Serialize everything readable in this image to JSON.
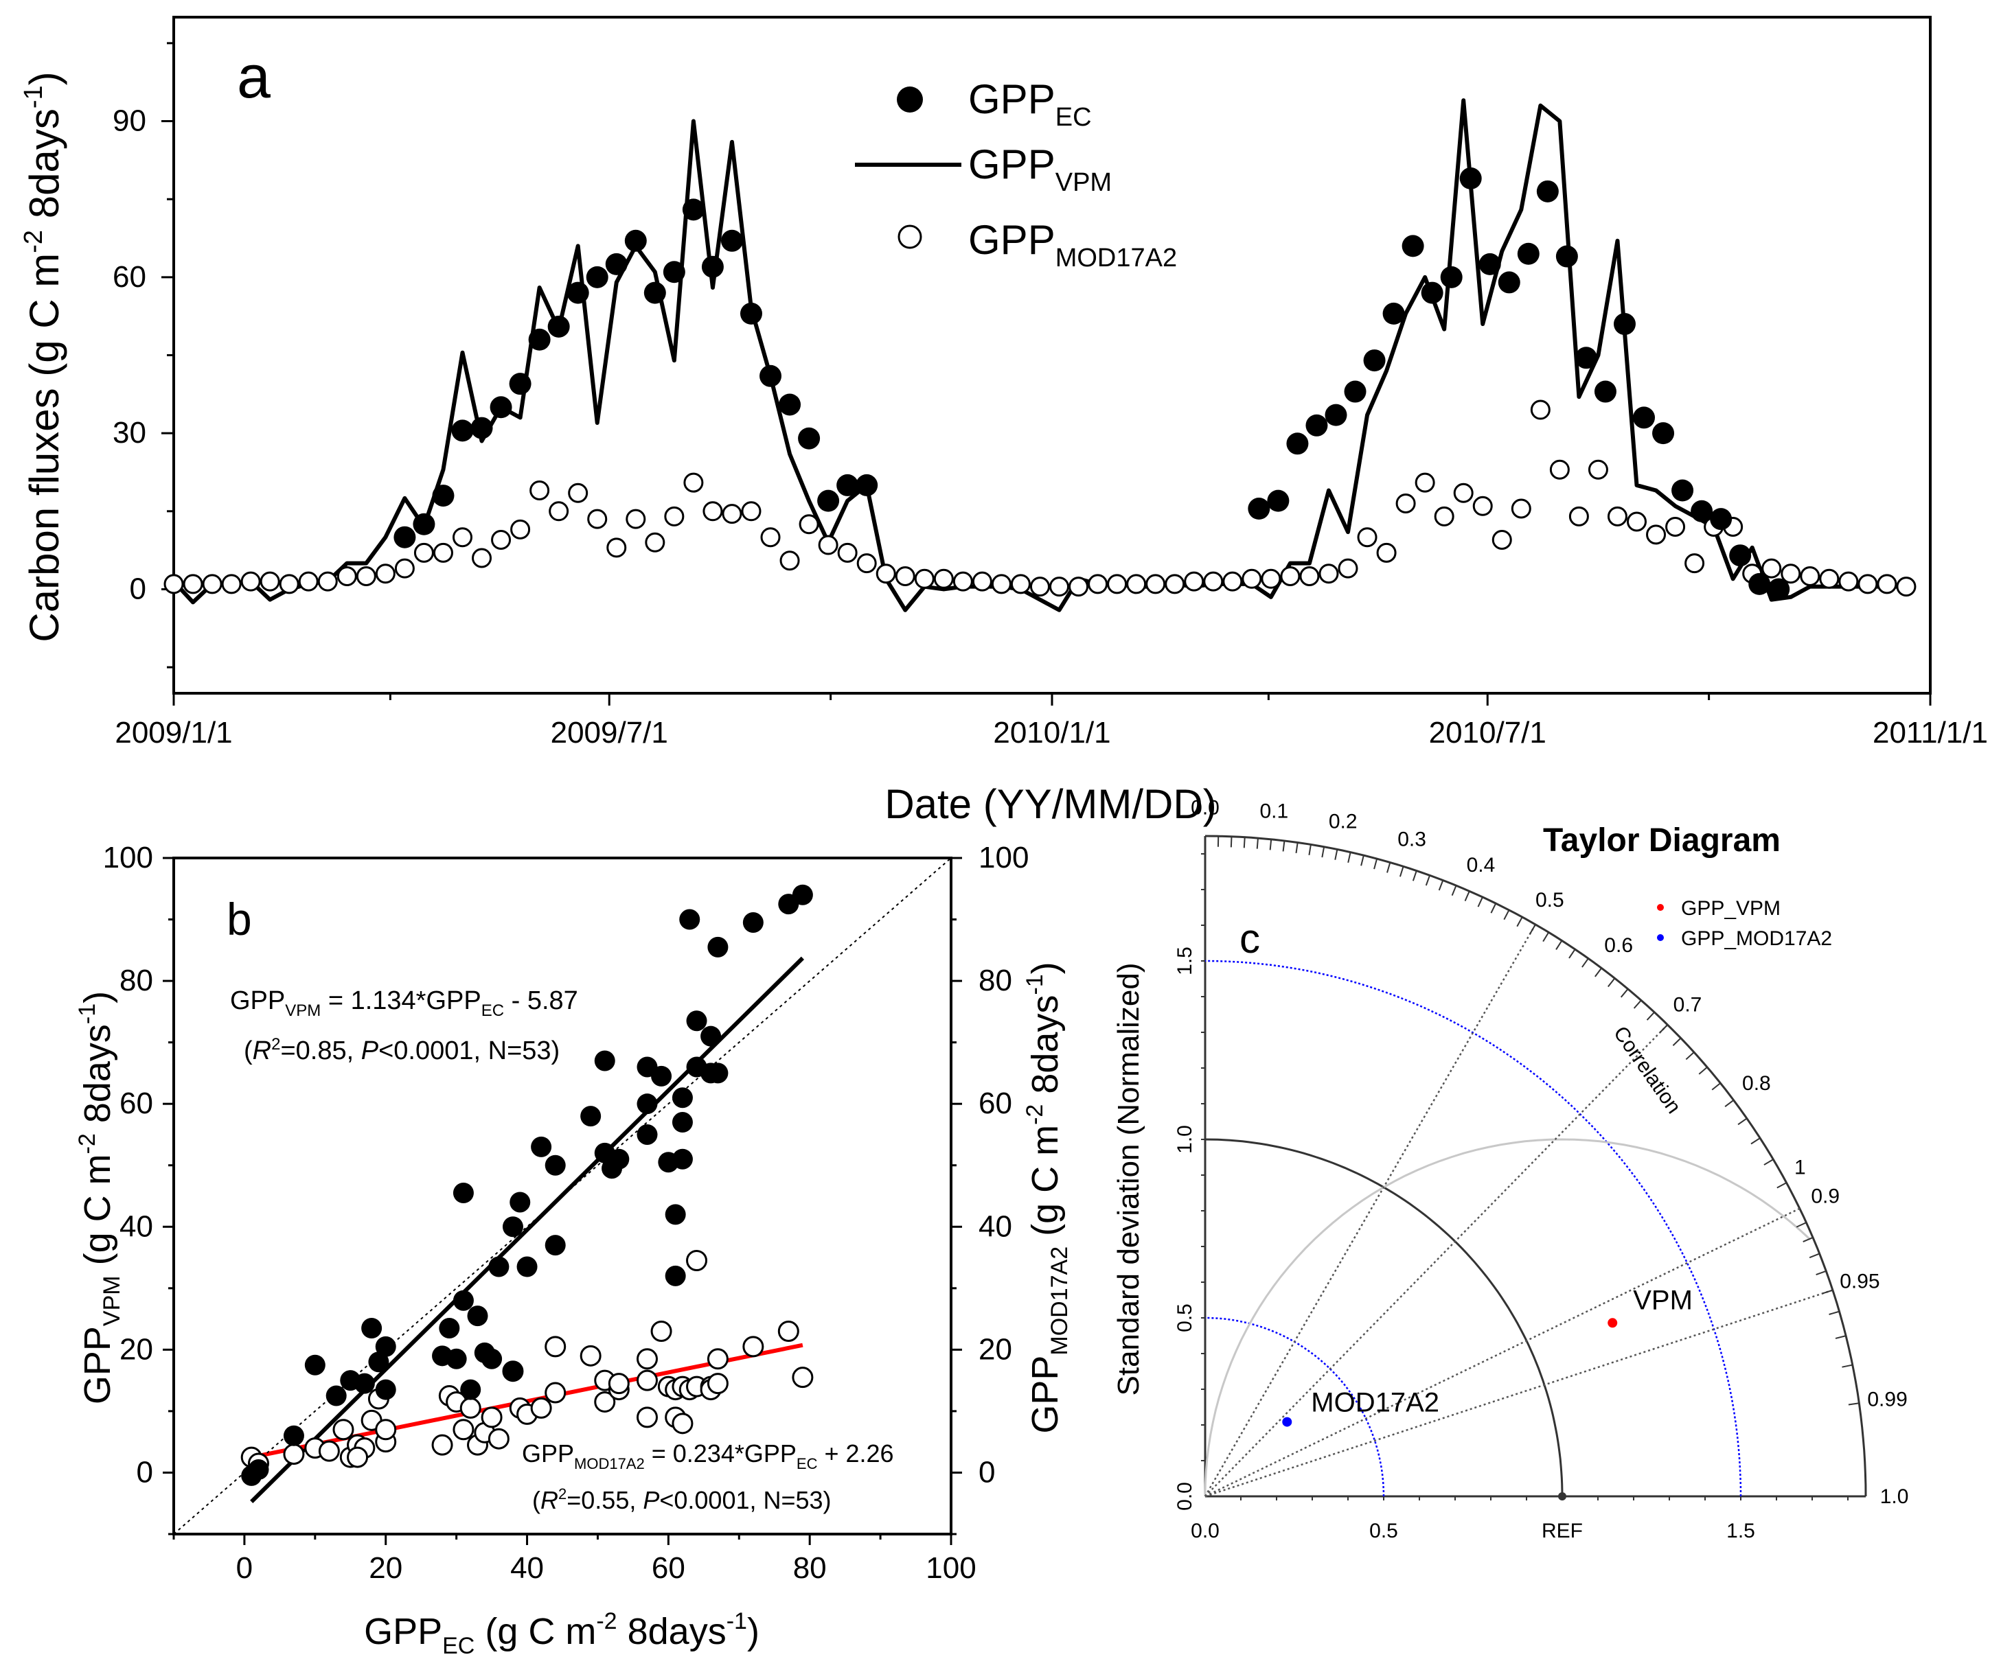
{
  "chart_data": [
    {
      "type": "line",
      "panel": "a",
      "xlabel": "Date (YY/MM/DD)",
      "ylabel": "Carbon fluxes (g C m-2 8days-1)",
      "ylabel_parts": {
        "base": "Carbon fluxes (g C m",
        "exp1": "-2",
        "mid": " 8days",
        "exp2": "-1",
        "end": ")"
      },
      "xlim": [
        0,
        730
      ],
      "ylim": [
        -20,
        110
      ],
      "yticks": [
        0,
        30,
        60,
        90
      ],
      "xticks": [
        {
          "day": 0,
          "label": "2009/1/1"
        },
        {
          "day": 181,
          "label": "2009/7/1"
        },
        {
          "day": 365,
          "label": "2010/1/1"
        },
        {
          "day": 546,
          "label": "2010/7/1"
        },
        {
          "day": 730,
          "label": "2011/1/1"
        }
      ],
      "legend": [
        {
          "base": "GPP",
          "sub": "EC",
          "marker": "filled-circle"
        },
        {
          "base": "GPP",
          "sub": "VPM",
          "marker": "line"
        },
        {
          "base": "GPP",
          "sub": "MOD17A2",
          "marker": "open-circle"
        }
      ],
      "series": [
        {
          "name": "GPP_EC",
          "days": [
            96,
            104,
            112,
            120,
            128,
            136,
            144,
            152,
            160,
            168,
            176,
            184,
            192,
            200,
            208,
            216,
            224,
            232,
            240,
            248,
            256,
            264,
            272,
            280,
            288,
            451,
            459,
            467,
            475,
            483,
            491,
            499,
            507,
            515,
            523,
            531,
            539,
            547,
            555,
            563,
            571,
            579,
            587,
            595,
            603,
            611,
            619,
            627,
            635,
            643,
            651,
            659,
            667
          ],
          "values": [
            10,
            12.5,
            18,
            30.5,
            31,
            35,
            39.5,
            48,
            50.5,
            57,
            60,
            62.5,
            67,
            57,
            61,
            73,
            62,
            67,
            53,
            41,
            35.5,
            29,
            17,
            20,
            20,
            15.5,
            17,
            28,
            31.5,
            33.5,
            38,
            44,
            53,
            66,
            57,
            60,
            79,
            62.5,
            59,
            64.5,
            76.5,
            64,
            44.5,
            38,
            51,
            33,
            30,
            19,
            15,
            13.5,
            6.5,
            1,
            0
          ]
        },
        {
          "name": "GPP_VPM",
          "days": [
            0,
            8,
            16,
            24,
            32,
            40,
            48,
            56,
            64,
            72,
            80,
            88,
            96,
            104,
            112,
            120,
            128,
            136,
            144,
            152,
            160,
            168,
            176,
            184,
            192,
            200,
            208,
            216,
            224,
            232,
            240,
            248,
            256,
            264,
            272,
            280,
            288,
            296,
            304,
            312,
            320,
            328,
            336,
            344,
            352,
            360,
            368,
            376,
            384,
            392,
            400,
            408,
            416,
            424,
            432,
            440,
            448,
            456,
            464,
            472,
            480,
            488,
            496,
            504,
            512,
            520,
            528,
            536,
            544,
            552,
            560,
            568,
            576,
            584,
            592,
            600,
            608,
            616,
            624,
            632,
            640,
            648,
            656,
            664,
            672,
            680,
            688,
            696,
            704,
            712,
            720
          ],
          "values": [
            1.5,
            -2.5,
            1,
            1,
            1.5,
            -2,
            0,
            1,
            1.5,
            5,
            5,
            10,
            17.5,
            12,
            23,
            45.5,
            28.5,
            35,
            33,
            58,
            50,
            66,
            32,
            59,
            66,
            61,
            44,
            90,
            58,
            86,
            54,
            41,
            26,
            17,
            9,
            17,
            20,
            2,
            -4,
            0.5,
            0,
            0.5,
            0.5,
            0.5,
            0,
            -2,
            -4,
            2,
            1,
            1,
            0.5,
            0.5,
            1,
            0.5,
            1,
            1,
            1,
            -1.5,
            5,
            5,
            19,
            11,
            33.5,
            42,
            53,
            60,
            50,
            94,
            51,
            65,
            73,
            93,
            90,
            37,
            45,
            67,
            20,
            19,
            16,
            14,
            12,
            2,
            8,
            -2,
            -1.5,
            0.5,
            0.5,
            0.5,
            0.5,
            0.5,
            0.5
          ]
        },
        {
          "name": "GPP_MOD17A2",
          "days": [
            0,
            8,
            16,
            24,
            32,
            40,
            48,
            56,
            64,
            72,
            80,
            88,
            96,
            104,
            112,
            120,
            128,
            136,
            144,
            152,
            160,
            168,
            176,
            184,
            192,
            200,
            208,
            216,
            224,
            232,
            240,
            248,
            256,
            264,
            272,
            280,
            288,
            296,
            304,
            312,
            320,
            328,
            336,
            344,
            352,
            360,
            368,
            376,
            384,
            392,
            400,
            408,
            416,
            424,
            432,
            440,
            448,
            456,
            464,
            472,
            480,
            488,
            496,
            504,
            512,
            520,
            528,
            536,
            544,
            552,
            560,
            568,
            576,
            584,
            592,
            600,
            608,
            616,
            624,
            632,
            640,
            648,
            656,
            664,
            672,
            680,
            688,
            696,
            704,
            712,
            720
          ],
          "values": [
            1,
            1,
            1,
            1,
            1.5,
            1.5,
            1,
            1.5,
            1.5,
            2.5,
            2.5,
            3,
            4,
            7,
            7,
            10,
            6,
            9.5,
            11.5,
            19,
            15,
            18.5,
            13.5,
            8,
            13.5,
            9,
            14,
            20.5,
            15,
            14.5,
            15,
            10,
            5.5,
            12.5,
            8.5,
            7,
            5,
            3,
            2.5,
            2,
            2,
            1.5,
            1.5,
            1,
            1,
            0.5,
            0.5,
            0.5,
            1,
            1,
            1,
            1,
            1,
            1.5,
            1.5,
            1.5,
            2,
            2,
            2.5,
            2.5,
            3,
            4,
            10,
            7,
            16.5,
            20.5,
            14,
            18.5,
            16,
            9.5,
            15.5,
            34.5,
            23,
            14,
            23,
            14,
            13,
            10.5,
            12,
            5,
            12,
            12,
            3,
            4,
            3,
            2.5,
            2,
            1.5,
            1,
            1,
            0.5
          ]
        }
      ]
    },
    {
      "type": "scatter",
      "panel": "b",
      "xlim": [
        -10,
        100
      ],
      "ylim": [
        -10,
        100
      ],
      "xticks": [
        0,
        20,
        40,
        60,
        80,
        100
      ],
      "yticks": [
        0,
        20,
        40,
        60,
        80,
        100
      ],
      "xlabel_parts": {
        "a": "GPP",
        "sub": "EC",
        "b": " (g C m",
        "sup1": "-2",
        "c": " 8days",
        "sup2": "-1",
        "d": ")"
      },
      "ylabel_left_parts": {
        "a": "GPP",
        "sub": "VPM",
        "b": " (g C m",
        "sup1": "-2",
        "c": " 8days",
        "sup2": "-1",
        "d": ")"
      },
      "ylabel_right_parts": {
        "a": "GPP",
        "sub": "MOD17A2",
        "b": " (g C m",
        "sup1": "-2",
        "c": " 8days",
        "sup2": "-1",
        "d": ")"
      },
      "eq_vpm": {
        "a": "GPP",
        "sub": "VPM",
        "b": " = 1.134*GPP",
        "sub2": "EC",
        "c": " - 5.87"
      },
      "stats_vpm": {
        "a": "(",
        "r": "R",
        "sup": "2",
        "b": "=0.85, ",
        "p": "P",
        "c": "<0.0001, N=53)"
      },
      "eq_mod": {
        "a": "GPP",
        "sub": "MOD17A2",
        "b": " = 0.234*GPP",
        "sub2": "EC",
        "c": " + 2.26"
      },
      "stats_mod": {
        "a": "(",
        "r": "R",
        "sup": "2",
        "b": "=0.55, ",
        "p": "P",
        "c": "<0.0001, N=53)"
      },
      "fit_lines": [
        {
          "name": "VPM fit",
          "slope": 1.134,
          "intercept": -5.87,
          "x_range": [
            1,
            79
          ],
          "color": "#000000"
        },
        {
          "name": "MOD17A2 fit",
          "slope": 0.234,
          "intercept": 2.26,
          "x_range": [
            1,
            79
          ],
          "color": "#ff0000"
        },
        {
          "name": "1:1 line",
          "slope": 1,
          "intercept": 0,
          "x_range": [
            -10,
            100
          ],
          "color": "#000000"
        }
      ],
      "series": [
        {
          "name": "GPP_VPM vs GPP_EC",
          "marker": "filled-circle",
          "x": [
            1,
            2,
            7,
            10,
            13,
            15,
            17,
            18,
            19,
            20,
            20,
            28,
            29,
            30,
            31,
            31,
            32,
            33,
            34,
            35,
            36,
            38,
            38,
            39,
            40,
            42,
            44,
            44,
            49,
            51,
            51,
            52,
            53,
            57,
            57,
            57,
            59,
            60,
            61,
            62,
            62,
            62,
            63,
            64,
            64,
            66,
            66,
            67,
            67,
            72,
            77,
            79,
            61
          ],
          "y": [
            -0.5,
            0.5,
            6,
            17.5,
            12.5,
            15,
            14.5,
            23.5,
            18,
            20.5,
            13.5,
            19,
            23.5,
            18.5,
            45.5,
            28,
            13.5,
            25.5,
            19.5,
            18.5,
            33.5,
            16.5,
            40,
            44,
            33.5,
            53,
            37,
            50,
            58,
            52,
            67,
            49.5,
            51,
            60,
            66,
            55,
            64.5,
            50.5,
            42,
            61,
            57,
            51,
            90,
            73.5,
            66,
            71,
            65,
            85.5,
            65,
            89.5,
            92.5,
            94,
            32
          ]
        },
        {
          "name": "GPP_MOD17A2 vs GPP_EC",
          "marker": "open-circle",
          "x": [
            1,
            2,
            7,
            10,
            12,
            14,
            15,
            16,
            17,
            18,
            19,
            20,
            20,
            28,
            29,
            30,
            31,
            32,
            33,
            34,
            35,
            36,
            38,
            39,
            40,
            42,
            44,
            44,
            49,
            51,
            51,
            53,
            53,
            57,
            57,
            57,
            59,
            60,
            61,
            61,
            62,
            62,
            63,
            64,
            64,
            66,
            66,
            67,
            67,
            72,
            77,
            79,
            16
          ],
          "y": [
            2.5,
            1.5,
            3,
            4,
            3.5,
            7,
            2.5,
            4.5,
            4,
            8.5,
            12,
            5,
            7,
            4.5,
            12.5,
            11.5,
            7,
            10.5,
            4.5,
            6.5,
            9,
            5.5,
            16.5,
            10.5,
            9.5,
            10.5,
            13,
            20.5,
            19,
            15,
            11.5,
            13.5,
            14.5,
            18.5,
            9,
            15,
            23,
            14,
            13.5,
            9,
            14,
            8,
            13.5,
            34.5,
            14,
            14,
            13.5,
            18.5,
            14.5,
            20.5,
            23,
            15.5,
            2.5
          ]
        }
      ]
    },
    {
      "type": "taylor",
      "panel": "c",
      "title": "Taylor Diagram",
      "ylabel": "Standard deviation (Normalized)",
      "xticks": [
        {
          "v": 0,
          "label": "0.0"
        },
        {
          "v": 0.5,
          "label": "0.5"
        },
        {
          "v": 1,
          "label": "REF"
        },
        {
          "v": 1.5,
          "label": "1.5"
        }
      ],
      "yticks": [
        {
          "v": 0,
          "label": "0.0"
        },
        {
          "v": 0.5,
          "label": "0.5"
        },
        {
          "v": 1,
          "label": "1.0"
        },
        {
          "v": 1.5,
          "label": "1.5"
        }
      ],
      "std_max": 1.85,
      "correlation_label": "Correlation",
      "correlation_ticks": [
        "0.0",
        "0.1",
        "0.2",
        "0.3",
        "0.4",
        "0.5",
        "0.6",
        "0.7",
        "0.8",
        "0.9",
        "0.95",
        "0.99",
        "1.0"
      ],
      "correlation_values": [
        0,
        0.1,
        0.2,
        0.3,
        0.4,
        0.5,
        0.6,
        0.7,
        0.8,
        0.9,
        0.95,
        0.99,
        1.0
      ],
      "rms_arc_label": "1",
      "points": [
        {
          "name": "VPM",
          "legend": "GPP_VPM",
          "std": 1.24,
          "corr": 0.92,
          "color": "#ff0000"
        },
        {
          "name": "MOD17A2",
          "legend": "GPP_MOD17A2",
          "std": 0.31,
          "corr": 0.74,
          "color": "#0000ff"
        }
      ]
    }
  ],
  "panel_labels": {
    "a": "a",
    "b": "b",
    "c": "c"
  }
}
